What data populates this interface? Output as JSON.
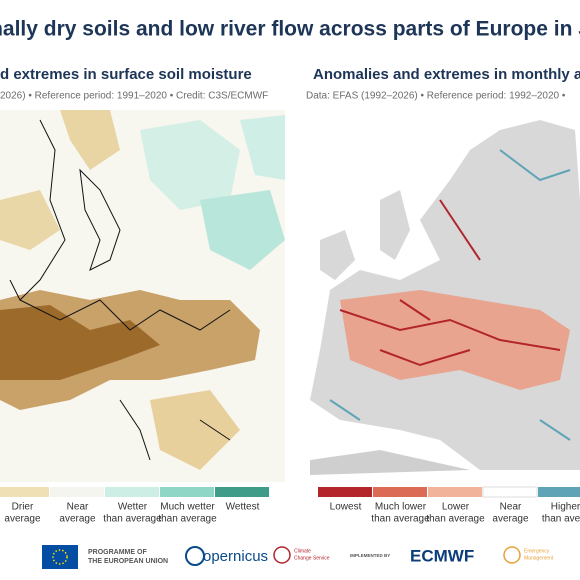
{
  "header": {
    "title": "onally dry soils and low river flow across parts of Europe in Ju"
  },
  "panels": [
    {
      "subtitle": "d extremes in surface soil moisture",
      "source": "2026) • Reference period: 1991–2020 • Credit: C3S/ECMWF",
      "legend": [
        {
          "lines": [
            "Drier",
            "average"
          ],
          "color": "#efe0b6"
        },
        {
          "lines": [
            "Near",
            "average"
          ],
          "color": "#f5f5f0"
        },
        {
          "lines": [
            "Wetter",
            "than average"
          ],
          "color": "#cdeee5"
        },
        {
          "lines": [
            "Much wetter",
            "than average"
          ],
          "color": "#8fd6c6"
        },
        {
          "lines": [
            "Wettest"
          ],
          "color": "#3f9c88"
        }
      ]
    },
    {
      "subtitle": "Anomalies and extremes in monthly a",
      "source": "Data: EFAS (1992–2026) • Reference period: 1992–2020 •",
      "legend": [
        {
          "lines": [
            "Lowest"
          ],
          "color": "#b3242b"
        },
        {
          "lines": [
            "Much lower",
            "than average"
          ],
          "color": "#dc6b56"
        },
        {
          "lines": [
            "Lower",
            "than average"
          ],
          "color": "#f1b49a"
        },
        {
          "lines": [
            "Near",
            "average"
          ],
          "color": "#ffffff"
        },
        {
          "lines": [
            "Higher",
            "than avera"
          ],
          "color": "#5fa4b6"
        }
      ]
    }
  ],
  "footer": {
    "eu": [
      "PROGRAMME OF",
      "THE EUROPEAN UNION"
    ],
    "copernicus": "opernicus",
    "climate": [
      "Climate",
      "Change Service"
    ],
    "implemented": "IMPLEMENTED BY",
    "ecmwf": "ECMWF",
    "emergency": [
      "Emergency",
      "Management"
    ]
  }
}
